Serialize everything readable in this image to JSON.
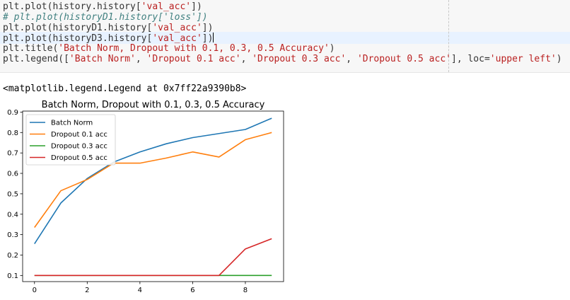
{
  "code": {
    "lines": [
      [
        {
          "t": "fn",
          "v": "plt.plot(history.history["
        },
        {
          "t": "str",
          "v": "'val_acc'"
        },
        {
          "t": "fn",
          "v": "])"
        }
      ],
      [
        {
          "t": "com",
          "v": "# plt.plot(historyD1.history['loss'])"
        }
      ],
      [
        {
          "t": "fn",
          "v": "plt.plot(historyD1.history["
        },
        {
          "t": "str",
          "v": "'val_acc'"
        },
        {
          "t": "fn",
          "v": "])"
        }
      ],
      [
        {
          "t": "fn",
          "v": "plt.plot(historyD3.history["
        },
        {
          "t": "str",
          "v": "'val_acc'"
        },
        {
          "t": "fn",
          "v": "])"
        }
      ],
      [
        {
          "t": "fn",
          "v": "plt.title("
        },
        {
          "t": "str",
          "v": "'Batch Norm, Dropout with 0.1, 0.3, 0.5 Accuracy'"
        },
        {
          "t": "fn",
          "v": ")"
        }
      ],
      [
        {
          "t": "fn",
          "v": "plt.legend(["
        },
        {
          "t": "str",
          "v": "'Batch Norm'"
        },
        {
          "t": "fn",
          "v": ", "
        },
        {
          "t": "str",
          "v": "'Dropout 0.1 acc'"
        },
        {
          "t": "fn",
          "v": ", "
        },
        {
          "t": "str",
          "v": "'Dropout 0.3 acc'"
        },
        {
          "t": "fn",
          "v": ", "
        },
        {
          "t": "str",
          "v": "'Dropout 0.5 acc'"
        },
        {
          "t": "fn",
          "v": "], loc="
        },
        {
          "t": "str",
          "v": "'upper left'"
        },
        {
          "t": "fn",
          "v": ")"
        }
      ]
    ]
  },
  "output": {
    "repr": "<matplotlib.legend.Legend at 0x7ff22a9390b8>"
  },
  "chart_data": {
    "type": "line",
    "title": "Batch Norm, Dropout with 0.1, 0.3, 0.5 Accuracy",
    "x": [
      0,
      1,
      2,
      3,
      4,
      5,
      6,
      7,
      8,
      9
    ],
    "xlim": [
      -0.45,
      9.45
    ],
    "ylim": [
      0.07,
      0.905
    ],
    "xticks": [
      0,
      2,
      4,
      6,
      8
    ],
    "yticks": [
      0.1,
      0.2,
      0.3,
      0.4,
      0.5,
      0.6,
      0.7,
      0.8,
      0.9
    ],
    "legend_loc": "upper left",
    "series": [
      {
        "name": "Batch Norm",
        "color": "#1f77b4",
        "values": [
          0.255,
          0.455,
          0.575,
          0.655,
          0.705,
          0.745,
          0.775,
          0.795,
          0.815,
          0.87
        ]
      },
      {
        "name": "Dropout 0.1 acc",
        "color": "#ff7f0e",
        "values": [
          0.335,
          0.515,
          0.57,
          0.65,
          0.65,
          0.675,
          0.705,
          0.68,
          0.765,
          0.8
        ]
      },
      {
        "name": "Dropout 0.3 acc",
        "color": "#2ca02c",
        "values": [
          0.1,
          0.1,
          0.1,
          0.1,
          0.1,
          0.1,
          0.1,
          0.1,
          0.1,
          0.1
        ]
      },
      {
        "name": "Dropout 0.5 acc",
        "color": "#d62728",
        "values": [
          0.1,
          0.1,
          0.1,
          0.1,
          0.1,
          0.1,
          0.1,
          0.1,
          0.23,
          0.28
        ]
      }
    ]
  }
}
